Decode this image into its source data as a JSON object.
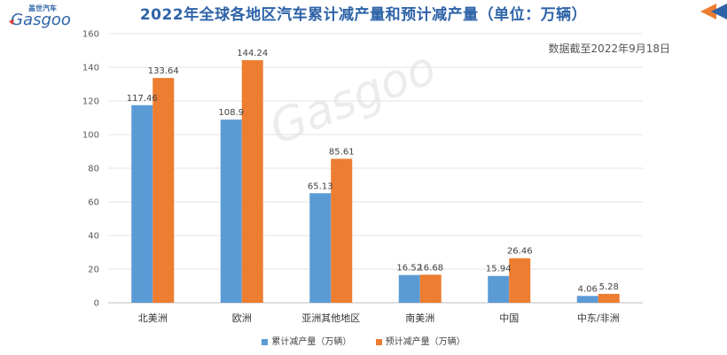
{
  "header": {
    "logo_text": "Gasgoo",
    "logo_cn": "盖世汽车",
    "title": "2022年全球各地区汽车累计减产量和预计减产量（单位：万辆）",
    "note": "数据截至2022年9月18日",
    "watermark_text": "Gasgoo"
  },
  "colors": {
    "series_1": "#5b9bd5",
    "series_2": "#ed7d31",
    "title": "#2e63a8",
    "accent": "#ed7d31"
  },
  "chart_data": {
    "type": "bar",
    "title": "2022年全球各地区汽车累计减产量和预计减产量（单位：万辆）",
    "xlabel": "",
    "ylabel": "",
    "ylim": [
      0,
      160
    ],
    "yticks": [
      0,
      20,
      40,
      60,
      80,
      100,
      120,
      140,
      160
    ],
    "grid": true,
    "legend_position": "bottom",
    "categories": [
      "北美洲",
      "欧洲",
      "亚洲其他地区",
      "南美洲",
      "中国",
      "中东/非洲"
    ],
    "series": [
      {
        "name": "累计减产量（万辆）",
        "values": [
          117.46,
          108.9,
          65.13,
          16.52,
          15.94,
          4.06
        ],
        "labels": [
          "117.46",
          "108.9",
          "65.13",
          "16.52",
          "15.94",
          "4.06"
        ]
      },
      {
        "name": "预计减产量（万辆）",
        "values": [
          133.64,
          144.24,
          85.61,
          16.68,
          26.46,
          5.28
        ],
        "labels": [
          "133.64",
          "144.24",
          "85.61",
          "16.68",
          "26.46",
          "5.28"
        ]
      }
    ]
  }
}
